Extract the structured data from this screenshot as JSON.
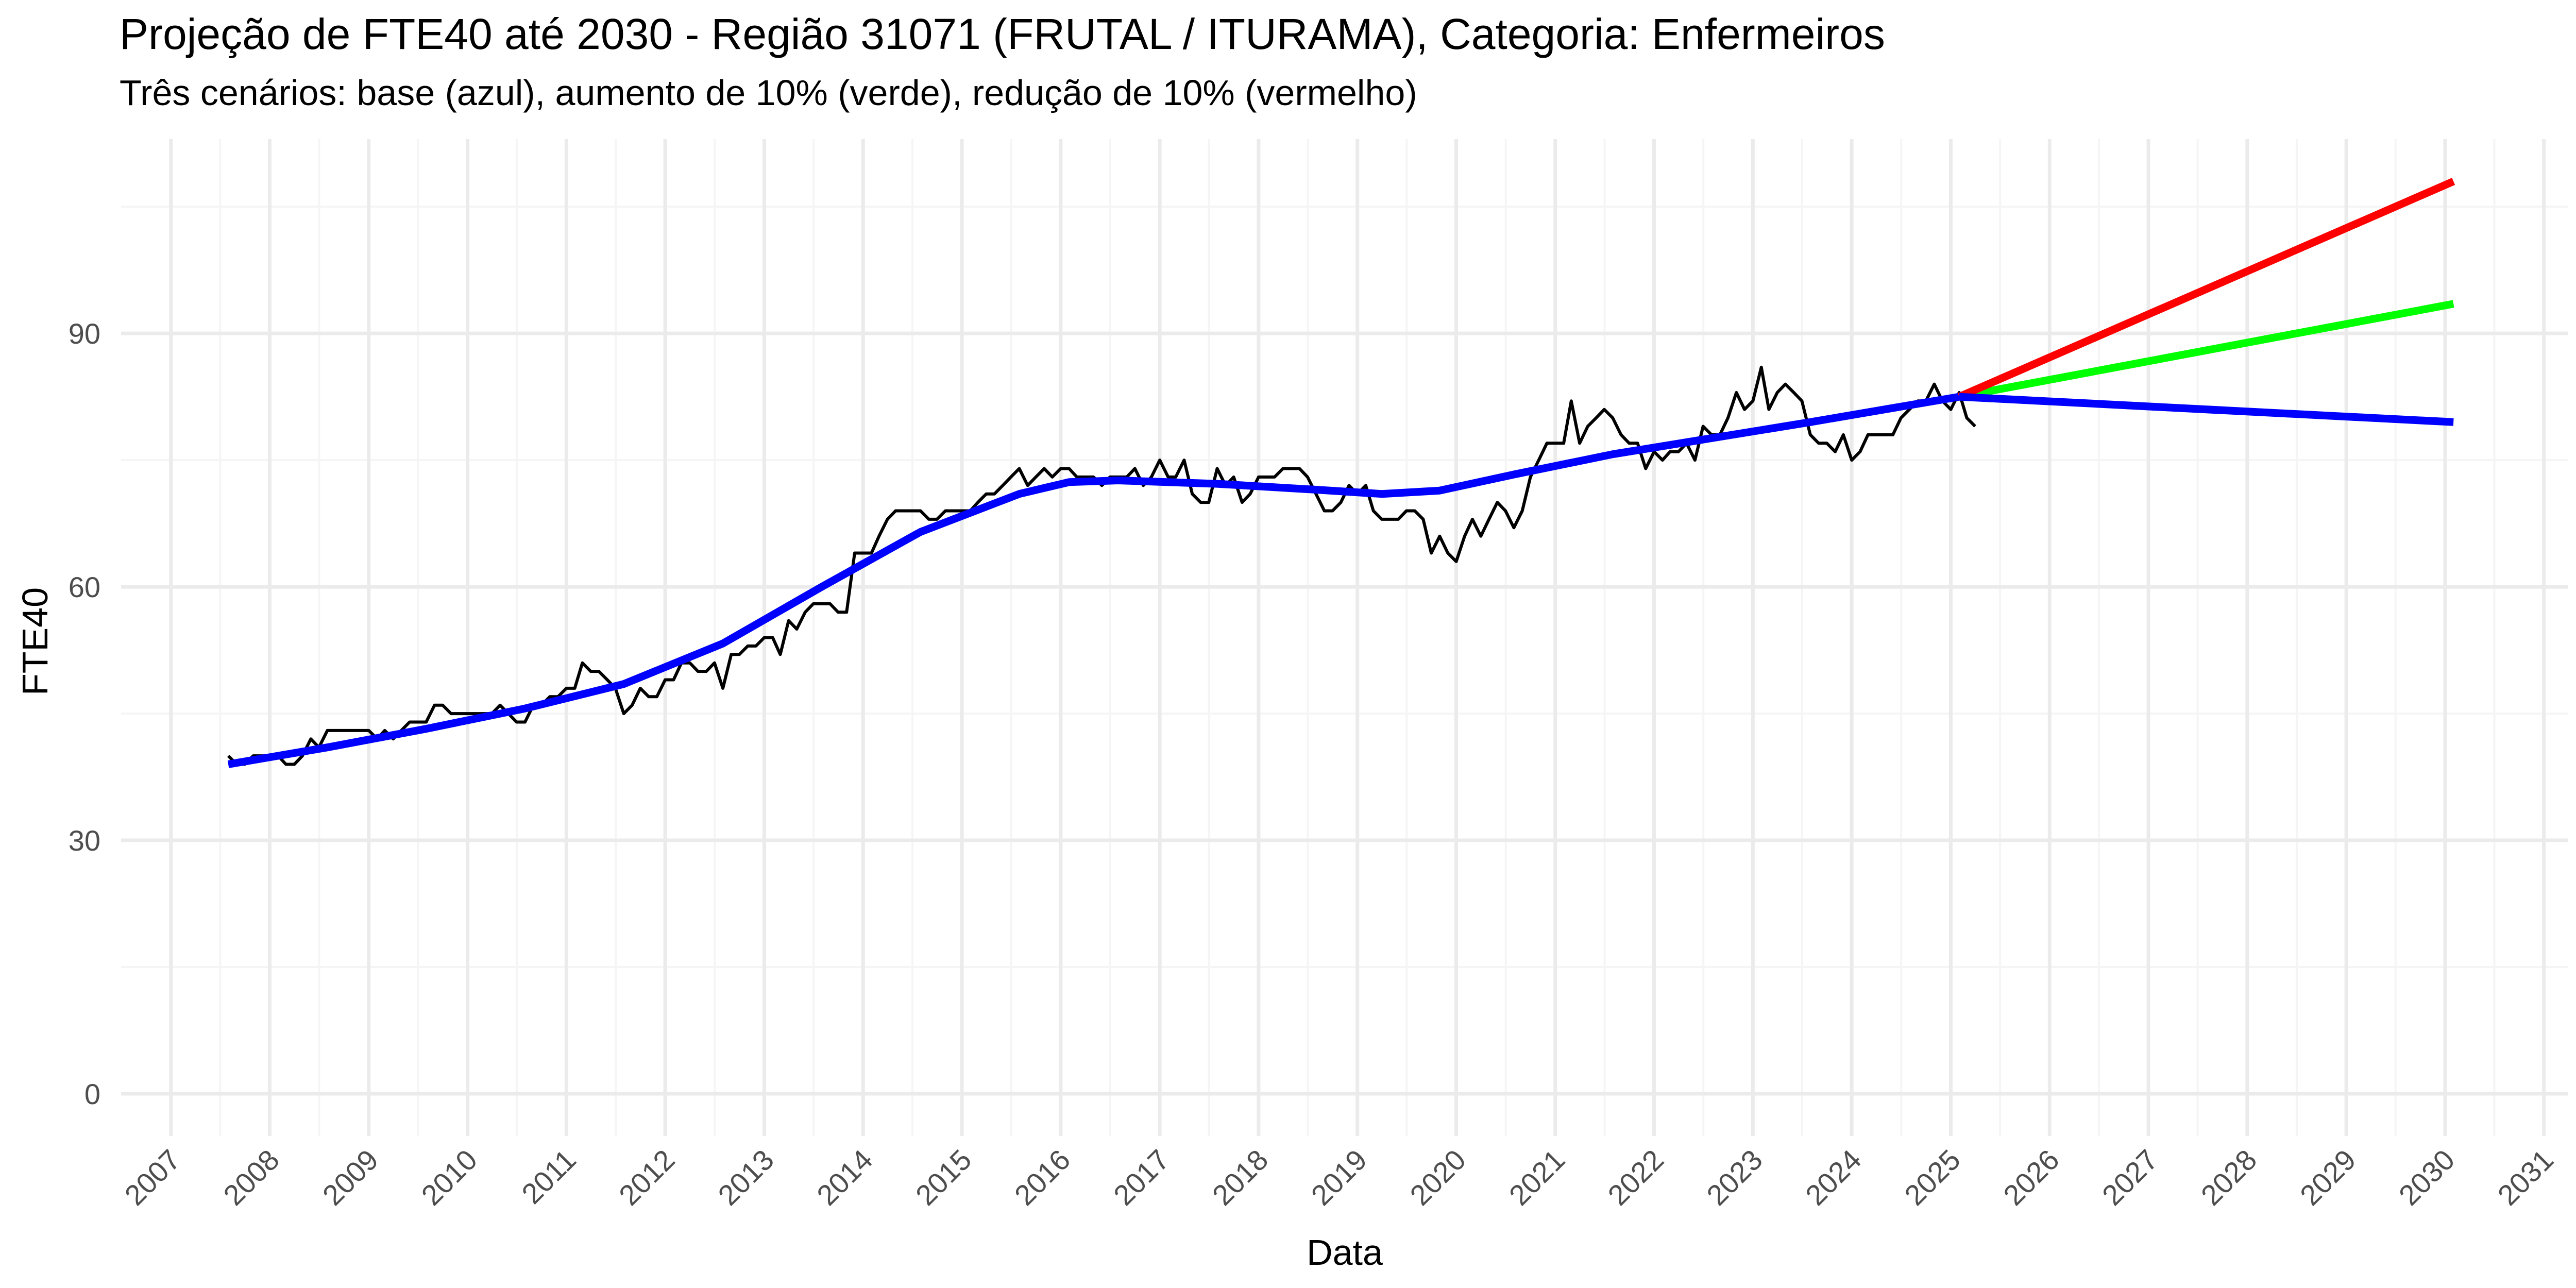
{
  "chart_data": {
    "type": "line",
    "title": "Projeção de FTE40 até 2030 - Região 31071 (FRUTAL / ITURAMA), Categoria: Enfermeiros",
    "subtitle": "Três cenários: base (azul), aumento de 10% (verde), redução de 10% (vermelho)",
    "xlabel": "Data",
    "ylabel": "FTE40",
    "xlim": [
      "2006-07-01",
      "2031-04-01"
    ],
    "ylim": [
      -5,
      113
    ],
    "x_ticks": [
      "2007",
      "2008",
      "2009",
      "2010",
      "2011",
      "2012",
      "2013",
      "2014",
      "2015",
      "2016",
      "2017",
      "2018",
      "2019",
      "2020",
      "2021",
      "2022",
      "2023",
      "2024",
      "2025",
      "2026",
      "2027",
      "2028",
      "2029",
      "2030",
      "2031"
    ],
    "y_ticks": [
      0,
      30,
      60,
      90
    ],
    "grid": true,
    "legend": "none",
    "colors": {
      "observed": "#000000",
      "base": "#0000ff",
      "aumento": "#00ff00",
      "reducao": "#ff0000",
      "grid_major": "#ebebeb",
      "grid_minor": "#f5f5f5"
    },
    "series": [
      {
        "points": [
          [
            "2007-08-01",
            40
          ],
          [
            "2007-09-01",
            39
          ],
          [
            "2007-10-01",
            39
          ],
          [
            "2007-11-01",
            40
          ],
          [
            "2007-12-01",
            40
          ],
          [
            "2008-01-01",
            40
          ],
          [
            "2008-02-01",
            40
          ],
          [
            "2008-03-01",
            39
          ],
          [
            "2008-04-01",
            39
          ],
          [
            "2008-05-01",
            40
          ],
          [
            "2008-06-01",
            42
          ],
          [
            "2008-07-01",
            41
          ],
          [
            "2008-08-01",
            43
          ],
          [
            "2008-09-01",
            43
          ],
          [
            "2008-10-01",
            43
          ],
          [
            "2008-11-01",
            43
          ],
          [
            "2008-12-01",
            43
          ],
          [
            "2009-01-01",
            43
          ],
          [
            "2009-02-01",
            42
          ],
          [
            "2009-03-01",
            43
          ],
          [
            "2009-04-01",
            42
          ],
          [
            "2009-05-01",
            43
          ],
          [
            "2009-06-01",
            44
          ],
          [
            "2009-07-01",
            44
          ],
          [
            "2009-08-01",
            44
          ],
          [
            "2009-09-01",
            46
          ],
          [
            "2009-10-01",
            46
          ],
          [
            "2009-11-01",
            45
          ],
          [
            "2009-12-01",
            45
          ],
          [
            "2010-01-01",
            45
          ],
          [
            "2010-02-01",
            45
          ],
          [
            "2010-03-01",
            45
          ],
          [
            "2010-04-01",
            45
          ],
          [
            "2010-05-01",
            46
          ],
          [
            "2010-06-01",
            45
          ],
          [
            "2010-07-01",
            44
          ],
          [
            "2010-08-01",
            44
          ],
          [
            "2010-09-01",
            46
          ],
          [
            "2010-10-01",
            46
          ],
          [
            "2010-11-01",
            47
          ],
          [
            "2010-12-01",
            47
          ],
          [
            "2011-01-01",
            48
          ],
          [
            "2011-02-01",
            48
          ],
          [
            "2011-03-01",
            51
          ],
          [
            "2011-04-01",
            50
          ],
          [
            "2011-05-01",
            50
          ],
          [
            "2011-06-01",
            49
          ],
          [
            "2011-07-01",
            48
          ],
          [
            "2011-08-01",
            45
          ],
          [
            "2011-09-01",
            46
          ],
          [
            "2011-10-01",
            48
          ],
          [
            "2011-11-01",
            47
          ],
          [
            "2011-12-01",
            47
          ],
          [
            "2012-01-01",
            49
          ],
          [
            "2012-02-01",
            49
          ],
          [
            "2012-03-01",
            51
          ],
          [
            "2012-04-01",
            51
          ],
          [
            "2012-05-01",
            50
          ],
          [
            "2012-06-01",
            50
          ],
          [
            "2012-07-01",
            51
          ],
          [
            "2012-08-01",
            48
          ],
          [
            "2012-09-01",
            52
          ],
          [
            "2012-10-01",
            52
          ],
          [
            "2012-11-01",
            53
          ],
          [
            "2012-12-01",
            53
          ],
          [
            "2013-01-01",
            54
          ],
          [
            "2013-02-01",
            54
          ],
          [
            "2013-03-01",
            52
          ],
          [
            "2013-04-01",
            56
          ],
          [
            "2013-05-01",
            55
          ],
          [
            "2013-06-01",
            57
          ],
          [
            "2013-07-01",
            58
          ],
          [
            "2013-08-01",
            58
          ],
          [
            "2013-09-01",
            58
          ],
          [
            "2013-10-01",
            57
          ],
          [
            "2013-11-01",
            57
          ],
          [
            "2013-12-01",
            64
          ],
          [
            "2014-01-01",
            64
          ],
          [
            "2014-02-01",
            64
          ],
          [
            "2014-03-01",
            66
          ],
          [
            "2014-04-01",
            68
          ],
          [
            "2014-05-01",
            69
          ],
          [
            "2014-06-01",
            69
          ],
          [
            "2014-07-01",
            69
          ],
          [
            "2014-08-01",
            69
          ],
          [
            "2014-09-01",
            68
          ],
          [
            "2014-10-01",
            68
          ],
          [
            "2014-11-01",
            69
          ],
          [
            "2014-12-01",
            69
          ],
          [
            "2015-01-01",
            69
          ],
          [
            "2015-02-01",
            69
          ],
          [
            "2015-03-01",
            70
          ],
          [
            "2015-04-01",
            71
          ],
          [
            "2015-05-01",
            71
          ],
          [
            "2015-06-01",
            72
          ],
          [
            "2015-07-01",
            73
          ],
          [
            "2015-08-01",
            74
          ],
          [
            "2015-09-01",
            72
          ],
          [
            "2015-10-01",
            73
          ],
          [
            "2015-11-01",
            74
          ],
          [
            "2015-12-01",
            73
          ],
          [
            "2016-01-01",
            74
          ],
          [
            "2016-02-01",
            74
          ],
          [
            "2016-03-01",
            73
          ],
          [
            "2016-04-01",
            73
          ],
          [
            "2016-05-01",
            73
          ],
          [
            "2016-06-01",
            72
          ],
          [
            "2016-07-01",
            73
          ],
          [
            "2016-08-01",
            73
          ],
          [
            "2016-09-01",
            73
          ],
          [
            "2016-10-01",
            74
          ],
          [
            "2016-11-01",
            72
          ],
          [
            "2016-12-01",
            73
          ],
          [
            "2017-01-01",
            75
          ],
          [
            "2017-02-01",
            73
          ],
          [
            "2017-03-01",
            73
          ],
          [
            "2017-04-01",
            75
          ],
          [
            "2017-05-01",
            71
          ],
          [
            "2017-06-01",
            70
          ],
          [
            "2017-07-01",
            70
          ],
          [
            "2017-08-01",
            74
          ],
          [
            "2017-09-01",
            72
          ],
          [
            "2017-10-01",
            73
          ],
          [
            "2017-11-01",
            70
          ],
          [
            "2017-12-01",
            71
          ],
          [
            "2018-01-01",
            73
          ],
          [
            "2018-02-01",
            73
          ],
          [
            "2018-03-01",
            73
          ],
          [
            "2018-04-01",
            74
          ],
          [
            "2018-05-01",
            74
          ],
          [
            "2018-06-01",
            74
          ],
          [
            "2018-07-01",
            73
          ],
          [
            "2018-08-01",
            71
          ],
          [
            "2018-09-01",
            69
          ],
          [
            "2018-10-01",
            69
          ],
          [
            "2018-11-01",
            70
          ],
          [
            "2018-12-01",
            72
          ],
          [
            "2019-01-01",
            71
          ],
          [
            "2019-02-01",
            72
          ],
          [
            "2019-03-01",
            69
          ],
          [
            "2019-04-01",
            68
          ],
          [
            "2019-05-01",
            68
          ],
          [
            "2019-06-01",
            68
          ],
          [
            "2019-07-01",
            69
          ],
          [
            "2019-08-01",
            69
          ],
          [
            "2019-09-01",
            68
          ],
          [
            "2019-10-01",
            64
          ],
          [
            "2019-11-01",
            66
          ],
          [
            "2019-12-01",
            64
          ],
          [
            "2020-01-01",
            63
          ],
          [
            "2020-02-01",
            66
          ],
          [
            "2020-03-01",
            68
          ],
          [
            "2020-04-01",
            66
          ],
          [
            "2020-05-01",
            68
          ],
          [
            "2020-06-01",
            70
          ],
          [
            "2020-07-01",
            69
          ],
          [
            "2020-08-01",
            67
          ],
          [
            "2020-09-01",
            69
          ],
          [
            "2020-10-01",
            73
          ],
          [
            "2020-11-01",
            75
          ],
          [
            "2020-12-01",
            77
          ],
          [
            "2021-01-01",
            77
          ],
          [
            "2021-02-01",
            77
          ],
          [
            "2021-03-01",
            82
          ],
          [
            "2021-04-01",
            77
          ],
          [
            "2021-05-01",
            79
          ],
          [
            "2021-06-01",
            80
          ],
          [
            "2021-07-01",
            81
          ],
          [
            "2021-08-01",
            80
          ],
          [
            "2021-09-01",
            78
          ],
          [
            "2021-10-01",
            77
          ],
          [
            "2021-11-01",
            77
          ],
          [
            "2021-12-01",
            74
          ],
          [
            "2022-01-01",
            76
          ],
          [
            "2022-02-01",
            75
          ],
          [
            "2022-03-01",
            76
          ],
          [
            "2022-04-01",
            76
          ],
          [
            "2022-05-01",
            77
          ],
          [
            "2022-06-01",
            75
          ],
          [
            "2022-07-01",
            79
          ],
          [
            "2022-08-01",
            78
          ],
          [
            "2022-09-01",
            78
          ],
          [
            "2022-10-01",
            80
          ],
          [
            "2022-11-01",
            83
          ],
          [
            "2022-12-01",
            81
          ],
          [
            "2023-01-01",
            82
          ],
          [
            "2023-02-01",
            86
          ],
          [
            "2023-03-01",
            81
          ],
          [
            "2023-04-01",
            83
          ],
          [
            "2023-05-01",
            84
          ],
          [
            "2023-06-01",
            83
          ],
          [
            "2023-07-01",
            82
          ],
          [
            "2023-08-01",
            78
          ],
          [
            "2023-09-01",
            77
          ],
          [
            "2023-10-01",
            77
          ],
          [
            "2023-11-01",
            76
          ],
          [
            "2023-12-01",
            78
          ],
          [
            "2024-01-01",
            75
          ],
          [
            "2024-02-01",
            76
          ],
          [
            "2024-03-01",
            78
          ],
          [
            "2024-04-01",
            78
          ],
          [
            "2024-05-01",
            78
          ],
          [
            "2024-06-01",
            78
          ],
          [
            "2024-07-01",
            80
          ],
          [
            "2024-08-01",
            81
          ],
          [
            "2024-09-01",
            82
          ],
          [
            "2024-10-01",
            82
          ],
          [
            "2024-11-01",
            84
          ],
          [
            "2024-12-01",
            82
          ],
          [
            "2025-01-01",
            81
          ],
          [
            "2025-02-01",
            83
          ],
          [
            "2025-03-01",
            80
          ],
          [
            "2025-04-01",
            79
          ]
        ]
      },
      {
        "points": [
          [
            "2007-08-01",
            39
          ],
          [
            "2008-08-01",
            41
          ],
          [
            "2009-08-01",
            43.2
          ],
          [
            "2010-08-01",
            45.6
          ],
          [
            "2011-08-01",
            48.5
          ],
          [
            "2012-08-01",
            53.3
          ],
          [
            "2013-08-01",
            60
          ],
          [
            "2014-08-01",
            66.5
          ],
          [
            "2015-08-01",
            71
          ],
          [
            "2016-02-01",
            72.4
          ],
          [
            "2016-08-01",
            72.6
          ],
          [
            "2017-08-01",
            72.2
          ],
          [
            "2018-08-01",
            71.5
          ],
          [
            "2019-04-01",
            71
          ],
          [
            "2019-11-01",
            71.4
          ],
          [
            "2020-08-01",
            73.3
          ],
          [
            "2021-08-01",
            75.7
          ],
          [
            "2022-08-01",
            77.6
          ],
          [
            "2023-08-01",
            79.5
          ],
          [
            "2024-08-01",
            81.5
          ],
          [
            "2025-02-01",
            82.5
          ]
        ]
      },
      {
        "points": [
          [
            "2025-02-01",
            82.5
          ],
          [
            "2030-02-01",
            93.5
          ]
        ]
      },
      {
        "points": [
          [
            "2025-02-01",
            82.5
          ],
          [
            "2030-02-01",
            108
          ]
        ]
      },
      {
        "points": [
          [
            "2025-02-01",
            82.5
          ],
          [
            "2030-02-01",
            79.5
          ]
        ]
      }
    ]
  }
}
